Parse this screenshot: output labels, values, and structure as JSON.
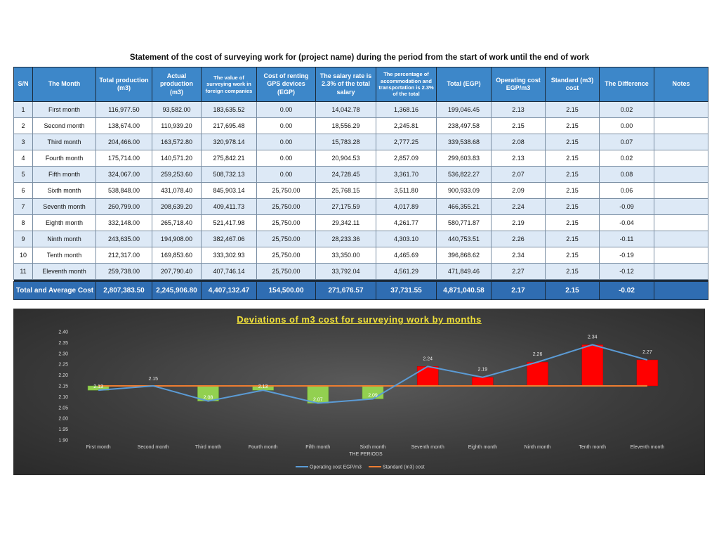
{
  "title": "Statement of the cost of surveying work for (project name) during the period from the start of work until the end of work",
  "table": {
    "headers": [
      "S/N",
      "The Month",
      "Total production (m3)",
      "Actual production (m3)",
      "The value of surveying work in foreign companies",
      "Cost of renting GPS devices (EGP)",
      "The salary rate is 2.3% of the total salary",
      "The percentage of accommodation and transportation is 2.3% of the total",
      "Total (EGP)",
      "Operating cost EGP/m3",
      "Standard (m3) cost",
      "The Difference",
      "Notes"
    ],
    "rows": [
      [
        "1",
        "First month",
        "116,977.50",
        "93,582.00",
        "183,635.52",
        "0.00",
        "14,042.78",
        "1,368.16",
        "199,046.45",
        "2.13",
        "2.15",
        "0.02",
        ""
      ],
      [
        "2",
        "Second month",
        "138,674.00",
        "110,939.20",
        "217,695.48",
        "0.00",
        "18,556.29",
        "2,245.81",
        "238,497.58",
        "2.15",
        "2.15",
        "0.00",
        ""
      ],
      [
        "3",
        "Third month",
        "204,466.00",
        "163,572.80",
        "320,978.14",
        "0.00",
        "15,783.28",
        "2,777.25",
        "339,538.68",
        "2.08",
        "2.15",
        "0.07",
        ""
      ],
      [
        "4",
        "Fourth month",
        "175,714.00",
        "140,571.20",
        "275,842.21",
        "0.00",
        "20,904.53",
        "2,857.09",
        "299,603.83",
        "2.13",
        "2.15",
        "0.02",
        ""
      ],
      [
        "5",
        "Fifth month",
        "324,067.00",
        "259,253.60",
        "508,732.13",
        "0.00",
        "24,728.45",
        "3,361.70",
        "536,822.27",
        "2.07",
        "2.15",
        "0.08",
        ""
      ],
      [
        "6",
        "Sixth month",
        "538,848.00",
        "431,078.40",
        "845,903.14",
        "25,750.00",
        "25,768.15",
        "3,511.80",
        "900,933.09",
        "2.09",
        "2.15",
        "0.06",
        ""
      ],
      [
        "7",
        "Seventh month",
        "260,799.00",
        "208,639.20",
        "409,411.73",
        "25,750.00",
        "27,175.59",
        "4,017.89",
        "466,355.21",
        "2.24",
        "2.15",
        "-0.09",
        ""
      ],
      [
        "8",
        "Eighth month",
        "332,148.00",
        "265,718.40",
        "521,417.98",
        "25,750.00",
        "29,342.11",
        "4,261.77",
        "580,771.87",
        "2.19",
        "2.15",
        "-0.04",
        ""
      ],
      [
        "9",
        "Ninth month",
        "243,635.00",
        "194,908.00",
        "382,467.06",
        "25,750.00",
        "28,233.36",
        "4,303.10",
        "440,753.51",
        "2.26",
        "2.15",
        "-0.11",
        ""
      ],
      [
        "10",
        "Tenth month",
        "212,317.00",
        "169,853.60",
        "333,302.93",
        "25,750.00",
        "33,350.00",
        "4,465.69",
        "396,868.62",
        "2.34",
        "2.15",
        "-0.19",
        ""
      ],
      [
        "11",
        "Eleventh month",
        "259,738.00",
        "207,790.40",
        "407,746.14",
        "25,750.00",
        "33,792.04",
        "4,561.29",
        "471,849.46",
        "2.27",
        "2.15",
        "-0.12",
        ""
      ]
    ],
    "total_row": [
      "Total and Average Cost",
      "2,807,383.50",
      "2,245,906.80",
      "4,407,132.47",
      "154,500.00",
      "271,676.57",
      "37,731.55",
      "4,871,040.58",
      "2.17",
      "2.15",
      "-0.02",
      ""
    ]
  },
  "chart_data": {
    "type": "line",
    "title": "Deviations of m3 cost for surveying work by months",
    "xlabel": "THE PERIODS",
    "ylabel": "",
    "categories": [
      "First month",
      "Second month",
      "Third month",
      "Fourth month",
      "Fifth month",
      "Sixth month",
      "Seventh month",
      "Eighth month",
      "Ninth month",
      "Tenth month",
      "Eleventh month"
    ],
    "series": [
      {
        "name": "Operating cost EGP/m3",
        "values": [
          2.13,
          2.15,
          2.08,
          2.13,
          2.07,
          2.09,
          2.24,
          2.19,
          2.26,
          2.34,
          2.27
        ]
      },
      {
        "name": "Standard (m3) cost",
        "values": [
          2.15,
          2.15,
          2.15,
          2.15,
          2.15,
          2.15,
          2.15,
          2.15,
          2.15,
          2.15,
          2.15
        ]
      }
    ],
    "ylim": [
      1.9,
      2.4
    ],
    "yticks": [
      "2.40",
      "2.35",
      "2.30",
      "2.25",
      "2.20",
      "2.15",
      "2.10",
      "2.05",
      "2.00",
      "1.95",
      "1.90"
    ],
    "data_labels": [
      "2.13",
      "2.15",
      "2.08",
      "2.13",
      "2.07",
      "2.09",
      "2.24",
      "2.19",
      "2.26",
      "2.34",
      "2.27"
    ],
    "legend_position": "bottom",
    "colors": {
      "operating_line": "#5b9bd5",
      "standard_line": "#ed7d31",
      "bar_up": "#ff0000",
      "bar_down": "#92d050",
      "title_color": "#f2e23a"
    }
  }
}
